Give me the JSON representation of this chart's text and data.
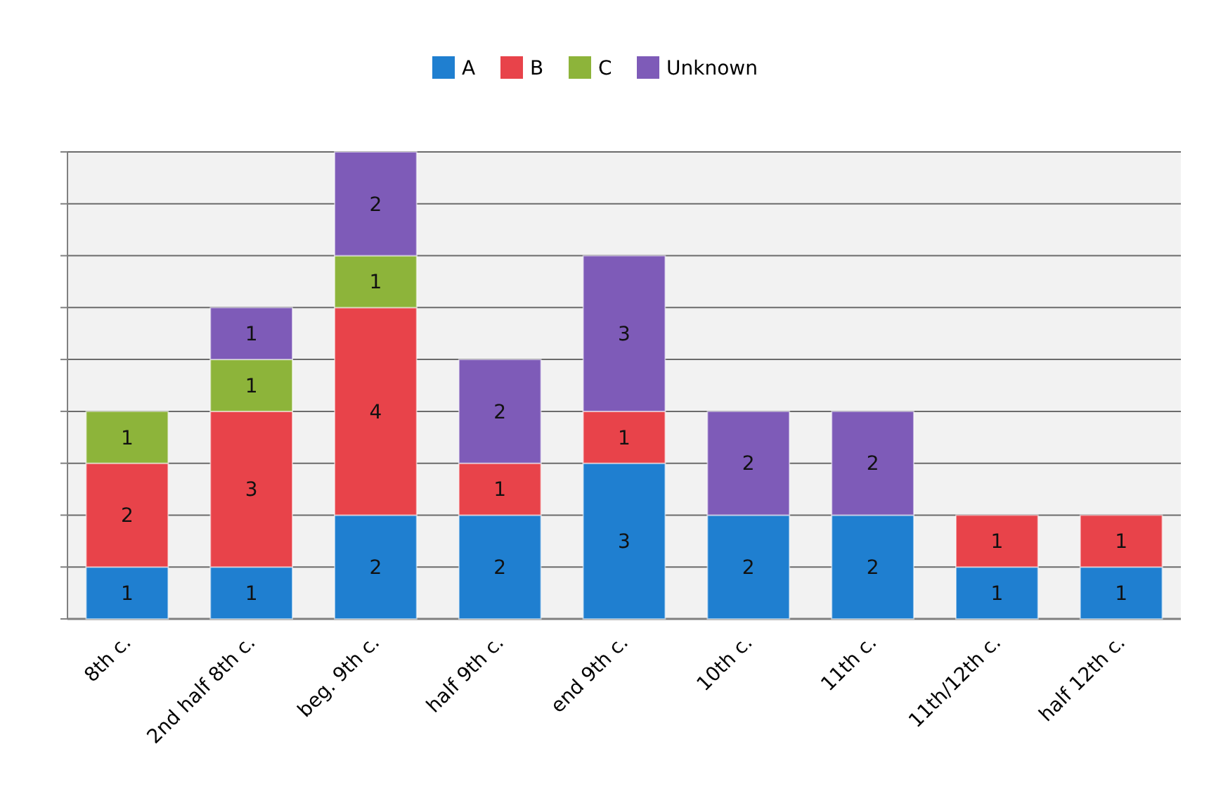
{
  "chart_data": {
    "type": "bar",
    "stacked": true,
    "categories": [
      "8th c.",
      "2nd half 8th c.",
      "beg. 9th c.",
      "half 9th c.",
      "end 9th c.",
      "10th c.",
      "11th c.",
      "11th/12th c.",
      "half 12th c."
    ],
    "series": [
      {
        "name": "A",
        "color": "#1f7fd0",
        "values": [
          1,
          1,
          2,
          2,
          3,
          2,
          2,
          1,
          1
        ]
      },
      {
        "name": "B",
        "color": "#e8434a",
        "values": [
          2,
          3,
          4,
          1,
          1,
          null,
          null,
          1,
          1
        ]
      },
      {
        "name": "C",
        "color": "#8db43a",
        "values": [
          1,
          1,
          1,
          null,
          null,
          null,
          null,
          null,
          null
        ]
      },
      {
        "name": "Unknown",
        "color": "#7e5bb8",
        "values": [
          null,
          1,
          2,
          2,
          3,
          2,
          2,
          null,
          null
        ]
      }
    ],
    "ylim": [
      0,
      9
    ],
    "yticks": [
      {
        "value": 0,
        "label": null
      },
      {
        "value": 1,
        "label": null
      },
      {
        "value": 2,
        "label": null
      },
      {
        "value": 3,
        "label": null
      },
      {
        "value": 4,
        "label": null
      },
      {
        "value": 5,
        "label": null
      },
      {
        "value": 6,
        "label": null
      },
      {
        "value": 7,
        "label": null
      },
      {
        "value": 8,
        "label": null
      },
      {
        "value": 9,
        "label": null
      }
    ],
    "grid": "y",
    "legend": "top",
    "data_labels": true
  }
}
